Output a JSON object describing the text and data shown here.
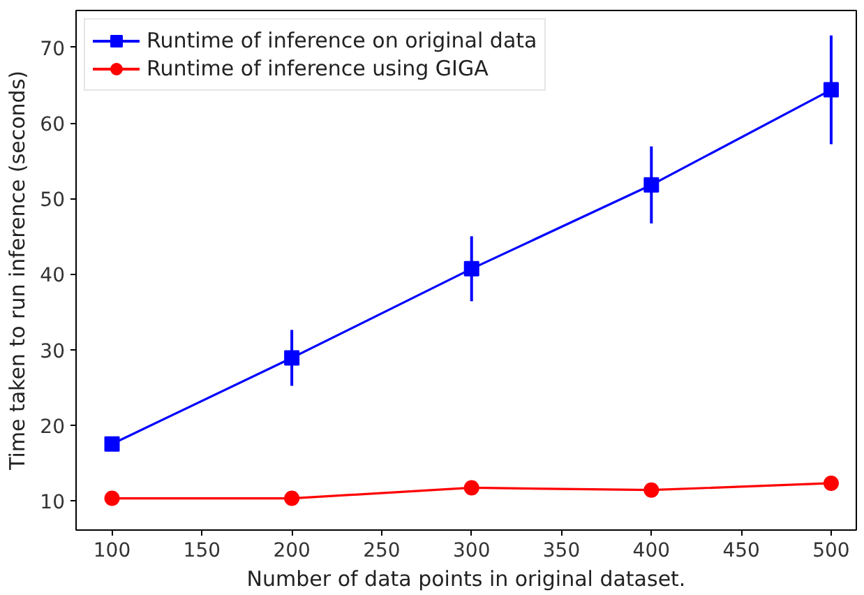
{
  "chart_data": {
    "type": "line",
    "xlabel": "Number of data points in original dataset.",
    "ylabel": "Time taken to run inference (seconds)",
    "x": [
      100,
      200,
      300,
      400,
      500
    ],
    "xlim": [
      80,
      514
    ],
    "ylim": [
      6.1,
      74.9
    ],
    "xticks": [
      100,
      150,
      200,
      250,
      300,
      350,
      400,
      450,
      500
    ],
    "yticks": [
      10,
      20,
      30,
      40,
      50,
      60,
      70
    ],
    "grid": false,
    "legend": "top left",
    "line_style": "solid",
    "series": [
      {
        "name": "Runtime of inference on original data",
        "color": "#0000ff",
        "marker": "square",
        "values": [
          17.5,
          28.9,
          40.7,
          51.8,
          64.4
        ],
        "errors": [
          null,
          3.7,
          4.3,
          5.1,
          7.2
        ]
      },
      {
        "name": "Runtime of inference using GIGA",
        "color": "#ff0000",
        "marker": "circle",
        "values": [
          10.3,
          10.3,
          11.7,
          11.4,
          12.3
        ],
        "errors": [
          null,
          null,
          null,
          0.9,
          0.8
        ]
      }
    ]
  }
}
